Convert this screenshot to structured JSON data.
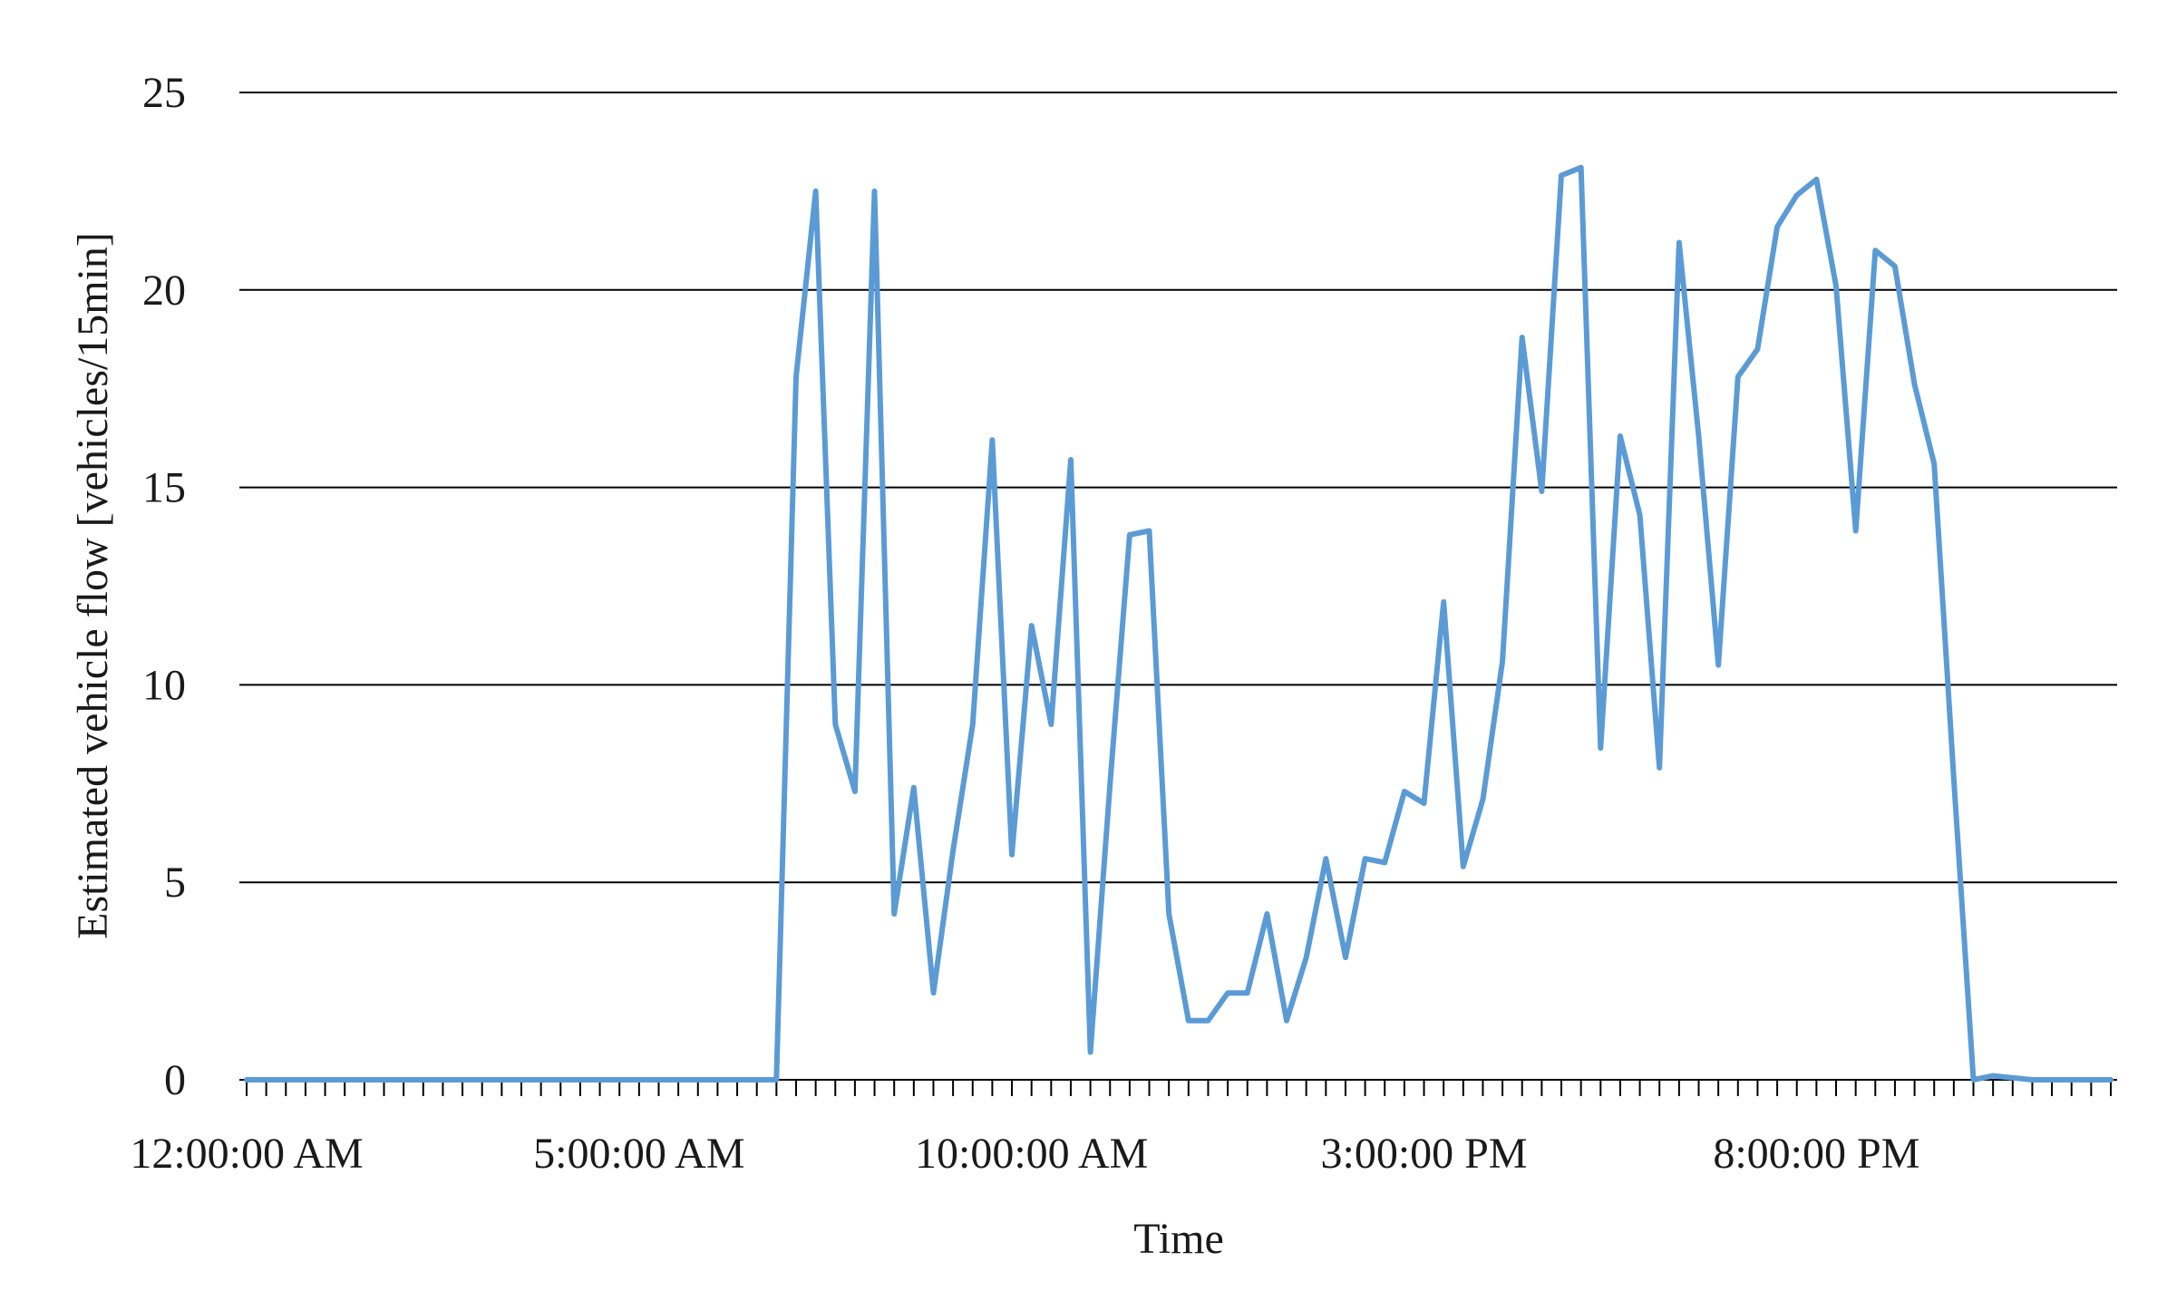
{
  "chart_data": {
    "type": "line",
    "xlabel": "Time",
    "ylabel": "Estimated vehicle flow [vehicles/15min]",
    "ylim": [
      0,
      25
    ],
    "yticks": [
      0,
      5,
      10,
      15,
      20,
      25
    ],
    "x_interval_minutes": 15,
    "xtick_labels": [
      {
        "index": 0,
        "label": "12:00:00 AM"
      },
      {
        "index": 20,
        "label": "5:00:00 AM"
      },
      {
        "index": 40,
        "label": "10:00:00 AM"
      },
      {
        "index": 60,
        "label": "3:00:00 PM"
      },
      {
        "index": 80,
        "label": "8:00:00 PM"
      }
    ],
    "grid": true,
    "legend": "none",
    "color": "#5b9bd5",
    "series": [
      {
        "values": [
          0,
          0,
          0,
          0,
          0,
          0,
          0,
          0,
          0,
          0,
          0,
          0,
          0,
          0,
          0,
          0,
          0,
          0,
          0,
          0,
          0,
          0,
          0,
          0,
          0,
          0,
          0,
          0,
          17.8,
          22.5,
          9.0,
          7.3,
          22.5,
          4.2,
          7.4,
          2.2,
          5.8,
          9.0,
          16.2,
          5.7,
          11.5,
          9.0,
          15.7,
          0.7,
          7.5,
          13.8,
          13.9,
          4.2,
          1.5,
          1.5,
          2.2,
          2.2,
          4.2,
          1.5,
          3.1,
          5.6,
          3.1,
          5.6,
          5.5,
          7.3,
          7.0,
          12.1,
          5.4,
          7.1,
          10.6,
          18.8,
          14.9,
          22.9,
          23.1,
          8.4,
          16.3,
          14.3,
          7.9,
          21.2,
          16.3,
          10.5,
          17.8,
          18.5,
          21.6,
          22.4,
          22.8,
          20.1,
          13.9,
          21.0,
          20.6,
          17.6,
          15.6,
          7.6,
          0,
          0.1,
          0.05,
          0,
          0,
          0,
          0,
          0
        ]
      }
    ]
  }
}
